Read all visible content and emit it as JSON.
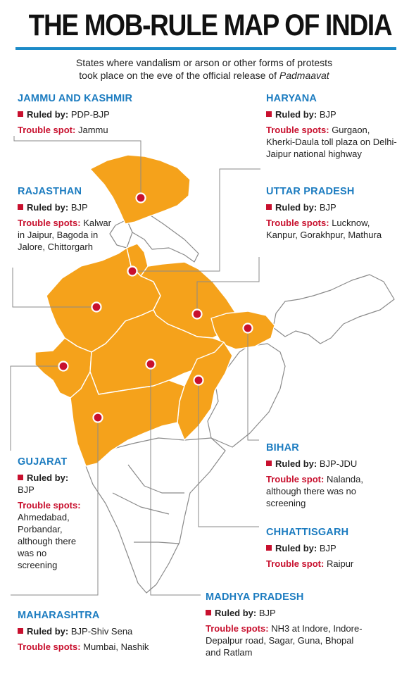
{
  "header": {
    "title": "THE MOB-RULE MAP OF INDIA",
    "subtitle_line1": "States where vandalism or arson or other forms of protests",
    "subtitle_line2_pre": "took place on the eve of the official release of ",
    "subtitle_line2_film": "Padmaavat"
  },
  "colors": {
    "highlight_state": "#f5a21b",
    "other_state": "#ffffff",
    "border": "#8a8a8a",
    "marker": "#c8102e",
    "state_name": "#1c7cc0",
    "rule": "#1c8bc8"
  },
  "labels": {
    "ruled_by": "Ruled by:",
    "trouble_spot": "Trouble spot:",
    "trouble_spots": "Trouble spots:"
  },
  "states": {
    "jk": {
      "name": "JAMMU AND KASHMIR",
      "ruled_by": "PDP-BJP",
      "trouble": "Jammu"
    },
    "haryana": {
      "name": "HARYANA",
      "ruled_by": "BJP",
      "trouble": "Gurgaon, Kherki-Daula toll plaza on Delhi-Jaipur national highway"
    },
    "rajasthan": {
      "name": "RAJASTHAN",
      "ruled_by": "BJP",
      "trouble": "Kalwar in Jaipur, Bagoda in Jalore, Chittorgarh"
    },
    "up": {
      "name": "UTTAR PRADESH",
      "ruled_by": "BJP",
      "trouble": "Lucknow, Kanpur, Gorakhpur, Mathura"
    },
    "bihar": {
      "name": "BIHAR",
      "ruled_by": "BJP-JDU",
      "trouble": "Nalanda, although there was no screening"
    },
    "gujarat": {
      "name": "GUJARAT",
      "ruled_by": "BJP",
      "trouble": "Ahmedabad, Porbandar, although there was no screening"
    },
    "chhattisgarh": {
      "name": "CHHATTISGARH",
      "ruled_by": "BJP",
      "trouble": "Raipur"
    },
    "mp": {
      "name": "MADHYA PRADESH",
      "ruled_by": "BJP",
      "trouble": "NH3 at Indore, Indore-Depalpur road, Sagar, Guna, Bhopal and Ratlam"
    },
    "maharashtra": {
      "name": "MAHARASHTRA",
      "ruled_by": "BJP-Shiv Sena",
      "trouble": "Mumbai, Nashik"
    }
  }
}
